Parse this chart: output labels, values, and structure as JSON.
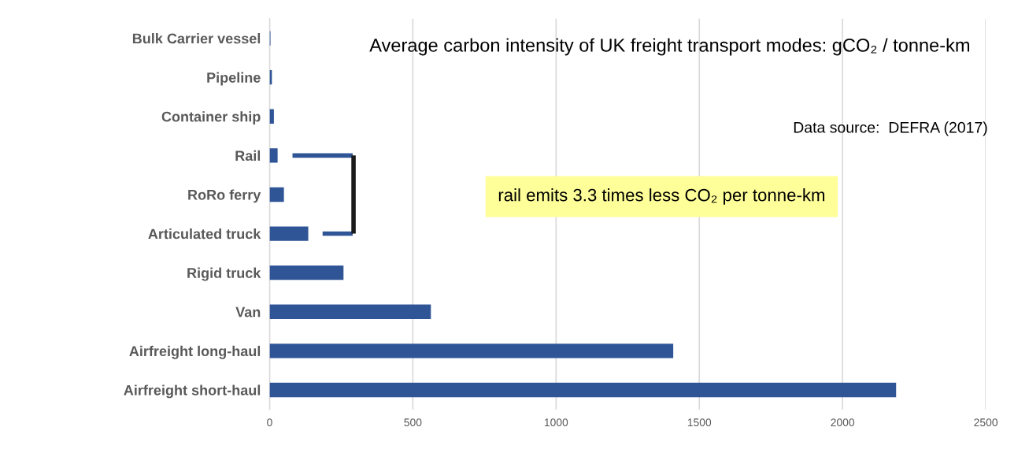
{
  "chart_data": {
    "type": "bar",
    "orientation": "horizontal",
    "title": "Average carbon intensity of UK freight transport modes: gCO₂ / tonne-km",
    "categories": [
      "Bulk Carrier vessel",
      "Pipeline",
      "Container ship",
      "Rail",
      "RoRo ferry",
      "Articulated truck",
      "Rigid truck",
      "Van",
      "Airfreight long-haul",
      "Airfreight short-haul"
    ],
    "values": [
      3,
      8,
      15,
      28,
      50,
      135,
      258,
      563,
      1409,
      2187
    ],
    "color": "#2f5597",
    "xlim": [
      0,
      2500
    ],
    "xticks": [
      0,
      500,
      1000,
      1500,
      2000,
      2500
    ],
    "grid": "x",
    "legend": false,
    "annotations": [
      "Data source:  DEFRA (2017)",
      "rail emits 3.3 times less CO₂ per tonne-km"
    ]
  }
}
